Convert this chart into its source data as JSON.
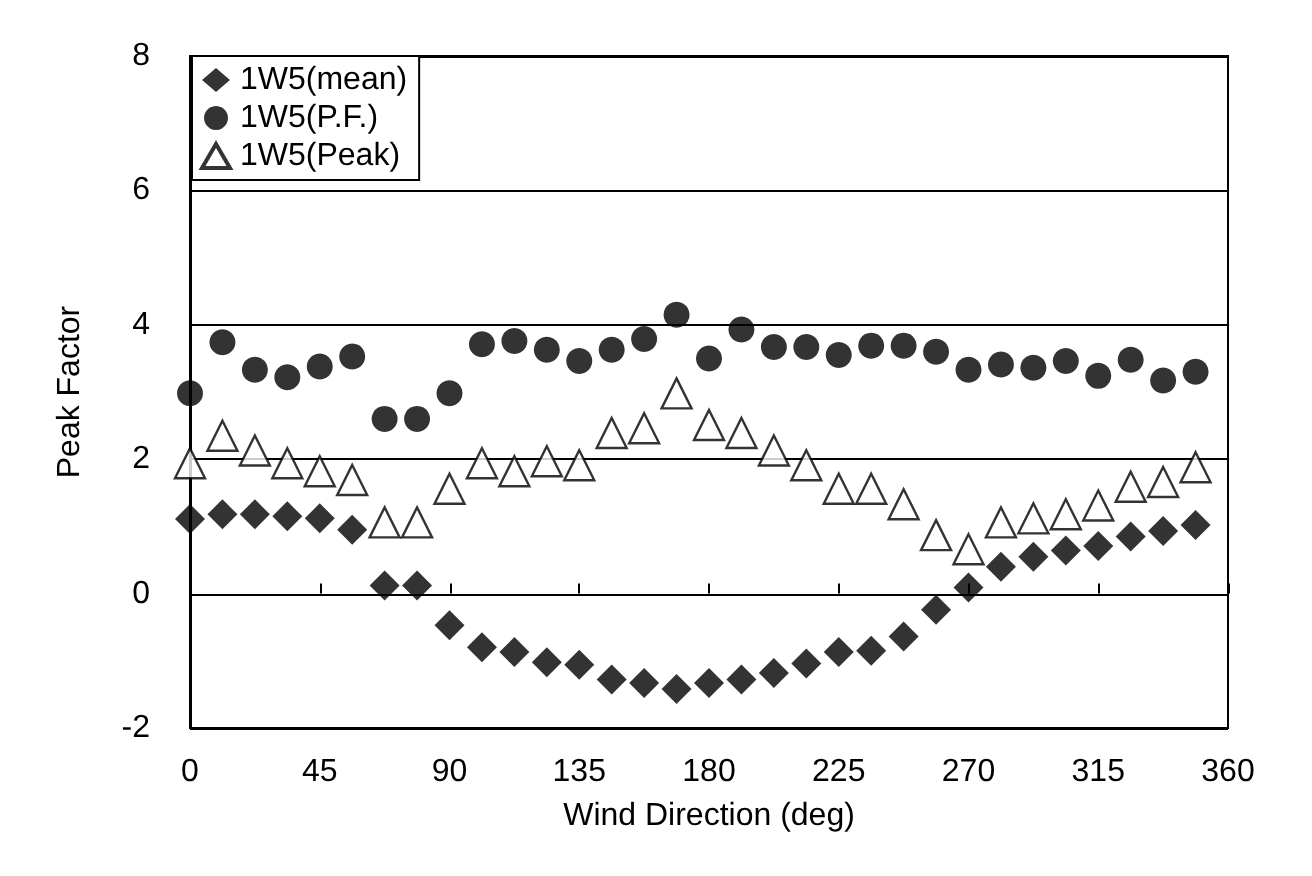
{
  "chart_data": {
    "type": "scatter",
    "xlabel": "Wind Direction (deg)",
    "ylabel": "Peak Factor",
    "x": [
      0,
      11.25,
      22.5,
      33.75,
      45,
      56.25,
      67.5,
      78.75,
      90,
      101.25,
      112.5,
      123.75,
      135,
      146.25,
      157.5,
      168.75,
      180,
      191.25,
      202.5,
      213.75,
      225,
      236.25,
      247.5,
      258.75,
      270,
      281.25,
      292.5,
      303.75,
      315,
      326.25,
      337.5,
      348.75
    ],
    "series": [
      {
        "name": "1W5(mean)",
        "color": "#000000",
        "marker": "diamond",
        "values": [
          1.11,
          1.18,
          1.18,
          1.15,
          1.12,
          0.95,
          0.12,
          0.12,
          -0.47,
          -0.8,
          -0.87,
          -1.02,
          -1.06,
          -1.28,
          -1.33,
          -1.42,
          -1.33,
          -1.28,
          -1.18,
          -1.04,
          -0.87,
          -0.85,
          -0.64,
          -0.24,
          0.09,
          0.4,
          0.55,
          0.64,
          0.71,
          0.85,
          0.93,
          1.02
        ]
      },
      {
        "name": "1W5(P.F.)",
        "color": "#000000",
        "marker": "circle",
        "values": [
          2.98,
          3.74,
          3.33,
          3.22,
          3.38,
          3.53,
          2.6,
          2.6,
          2.98,
          3.71,
          3.76,
          3.63,
          3.46,
          3.63,
          3.79,
          4.15,
          3.5,
          3.93,
          3.67,
          3.67,
          3.55,
          3.69,
          3.69,
          3.6,
          3.33,
          3.41,
          3.36,
          3.46,
          3.24,
          3.48,
          3.17,
          3.3
        ]
      },
      {
        "name": "1W5(Peak)",
        "color": "#000000",
        "marker": "triangle",
        "values": [
          1.94,
          2.35,
          2.13,
          1.94,
          1.82,
          1.69,
          1.06,
          1.06,
          1.56,
          1.94,
          1.82,
          1.97,
          1.91,
          2.39,
          2.46,
          2.98,
          2.51,
          2.39,
          2.13,
          1.91,
          1.56,
          1.56,
          1.33,
          0.87,
          0.66,
          1.06,
          1.12,
          1.18,
          1.31,
          1.59,
          1.66,
          1.88
        ]
      }
    ],
    "xlim": [
      0,
      360
    ],
    "xticks": [
      0,
      45,
      90,
      135,
      180,
      225,
      270,
      315,
      360
    ],
    "ylim": [
      -2,
      8
    ],
    "yticks": [
      -2,
      0,
      2,
      4,
      6,
      8
    ],
    "grid": "y",
    "legend": "top left"
  }
}
